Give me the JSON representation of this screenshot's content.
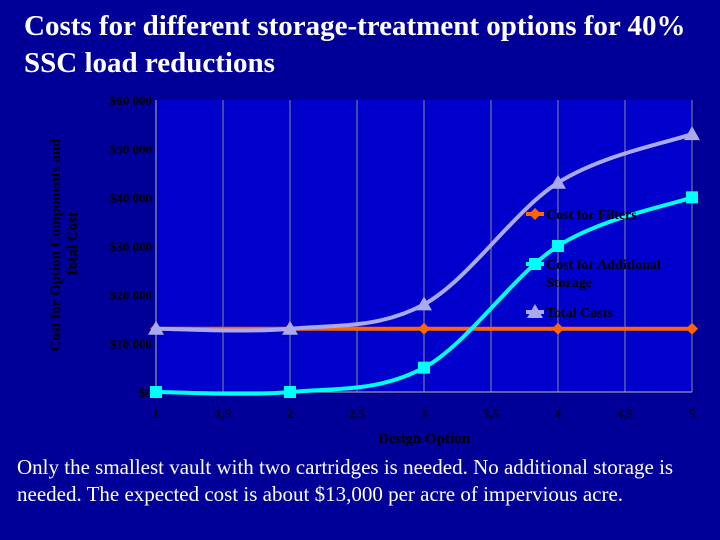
{
  "slide": {
    "title": "Costs for different storage-treatment options for 40% SSC load reductions",
    "caption": "Only the smallest vault with two cartridges is needed. No additional storage is needed. The expected cost is about $13,000 per acre of impervious acre."
  },
  "colors": {
    "background": "#000099",
    "plot_background": "#0000cc",
    "grid": "#8a8a8a",
    "axis_text": "#000000",
    "cost_filters": "#ff6600",
    "cost_storage": "#00ffff",
    "total_cost": "#a9a9ee"
  },
  "chart_data": {
    "type": "line",
    "title": "",
    "xlabel": "Design Option",
    "ylabel": "Cost for Option Components and Total Cost",
    "xlim": [
      1,
      5
    ],
    "ylim": [
      0,
      60000
    ],
    "x_ticks": [
      1,
      1.5,
      2,
      2.5,
      3,
      3.5,
      4,
      4.5,
      5
    ],
    "x_tick_labels": [
      "1",
      "1,5",
      "2",
      "2,5",
      "3",
      "3,5",
      "4",
      "4,5",
      "5"
    ],
    "y_ticks": [
      0,
      10000,
      20000,
      30000,
      40000,
      50000,
      60000
    ],
    "y_tick_labels": [
      "$0",
      "$10 000",
      "$20 000",
      "$30 000",
      "$40 000",
      "$50 000",
      "$60 000"
    ],
    "grid": "vertical",
    "legend_position": "right",
    "x": [
      1,
      2,
      3,
      4,
      5
    ],
    "series": [
      {
        "name": "Cost for Filters",
        "color": "#ff6600",
        "marker": "diamond",
        "values": [
          13000,
          13000,
          13000,
          13000,
          13000
        ]
      },
      {
        "name": "Cost for Additional Storage",
        "color": "#00ffff",
        "marker": "square",
        "values": [
          0,
          0,
          5000,
          30000,
          40000
        ]
      },
      {
        "name": "Total Costs",
        "color": "#a9a9ee",
        "marker": "triangle",
        "values": [
          13000,
          13000,
          18000,
          43000,
          53000
        ]
      }
    ]
  }
}
